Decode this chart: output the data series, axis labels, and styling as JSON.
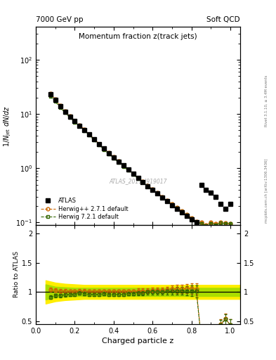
{
  "title": "Momentum fraction z(track jets)",
  "top_left_label": "7000 GeV pp",
  "top_right_label": "Soft QCD",
  "right_label_top": "Rivet 3.1.10, ≥ 3.4M events",
  "right_label_bottom": "mcplots.cern.ch [arXiv:1306.3436]",
  "watermark": "ATLAS_2011_I919017",
  "xlabel": "Charged particle z",
  "ylabel_main": "1/N$_\\mathrm{jet}$ dN/dz",
  "ylabel_ratio": "Ratio to ATLAS",
  "atlas_x": [
    0.075,
    0.1,
    0.125,
    0.15,
    0.175,
    0.2,
    0.225,
    0.25,
    0.275,
    0.3,
    0.325,
    0.35,
    0.375,
    0.4,
    0.425,
    0.45,
    0.475,
    0.5,
    0.525,
    0.55,
    0.575,
    0.6,
    0.625,
    0.65,
    0.675,
    0.7,
    0.725,
    0.75,
    0.775,
    0.8,
    0.825,
    0.85,
    0.875,
    0.9,
    0.925,
    0.95,
    0.975,
    1.0
  ],
  "atlas_y": [
    23.0,
    18.0,
    14.0,
    11.0,
    9.0,
    7.4,
    6.1,
    5.1,
    4.2,
    3.4,
    2.8,
    2.3,
    1.9,
    1.6,
    1.33,
    1.12,
    0.94,
    0.79,
    0.66,
    0.56,
    0.47,
    0.4,
    0.34,
    0.29,
    0.245,
    0.21,
    0.18,
    0.155,
    0.133,
    0.115,
    0.1,
    0.5,
    0.4,
    0.35,
    0.3,
    0.22,
    0.18,
    0.22
  ],
  "atlas_yerr": [
    0.5,
    0.4,
    0.3,
    0.25,
    0.2,
    0.17,
    0.14,
    0.12,
    0.1,
    0.08,
    0.07,
    0.06,
    0.05,
    0.04,
    0.035,
    0.03,
    0.025,
    0.02,
    0.018,
    0.016,
    0.014,
    0.012,
    0.01,
    0.009,
    0.008,
    0.007,
    0.006,
    0.005,
    0.004,
    0.004,
    0.003,
    0.03,
    0.025,
    0.02,
    0.018,
    0.015,
    0.012,
    0.015
  ],
  "herwig271_x": [
    0.075,
    0.1,
    0.125,
    0.15,
    0.175,
    0.2,
    0.225,
    0.25,
    0.275,
    0.3,
    0.325,
    0.35,
    0.375,
    0.4,
    0.425,
    0.45,
    0.475,
    0.5,
    0.525,
    0.55,
    0.575,
    0.6,
    0.625,
    0.65,
    0.675,
    0.7,
    0.725,
    0.75,
    0.775,
    0.8,
    0.825,
    0.85,
    0.875,
    0.9,
    0.925,
    0.95,
    0.975,
    1.0
  ],
  "herwig271_y": [
    24.0,
    18.5,
    14.3,
    11.2,
    9.1,
    7.5,
    6.2,
    5.2,
    4.25,
    3.45,
    2.82,
    2.32,
    1.92,
    1.61,
    1.34,
    1.13,
    0.95,
    0.8,
    0.67,
    0.57,
    0.48,
    0.41,
    0.35,
    0.3,
    0.255,
    0.22,
    0.189,
    0.163,
    0.141,
    0.122,
    0.105,
    0.1,
    0.09,
    0.1,
    0.095,
    0.1,
    0.098,
    0.095
  ],
  "herwig271_yerr": [
    0.5,
    0.4,
    0.3,
    0.25,
    0.2,
    0.17,
    0.14,
    0.12,
    0.1,
    0.08,
    0.07,
    0.06,
    0.05,
    0.04,
    0.035,
    0.03,
    0.025,
    0.02,
    0.018,
    0.016,
    0.014,
    0.012,
    0.01,
    0.009,
    0.008,
    0.007,
    0.006,
    0.005,
    0.004,
    0.004,
    0.003,
    0.003,
    0.003,
    0.003,
    0.003,
    0.003,
    0.003,
    0.003
  ],
  "herwig721_x": [
    0.075,
    0.1,
    0.125,
    0.15,
    0.175,
    0.2,
    0.225,
    0.25,
    0.275,
    0.3,
    0.325,
    0.35,
    0.375,
    0.4,
    0.425,
    0.45,
    0.475,
    0.5,
    0.525,
    0.55,
    0.575,
    0.6,
    0.625,
    0.65,
    0.675,
    0.7,
    0.725,
    0.75,
    0.775,
    0.8,
    0.825,
    0.85,
    0.875,
    0.9,
    0.925,
    0.95,
    0.975,
    1.0
  ],
  "herwig721_y": [
    21.0,
    16.9,
    13.2,
    10.5,
    8.6,
    7.1,
    5.95,
    4.95,
    4.05,
    3.28,
    2.7,
    2.22,
    1.83,
    1.53,
    1.28,
    1.08,
    0.91,
    0.77,
    0.65,
    0.55,
    0.47,
    0.4,
    0.34,
    0.29,
    0.248,
    0.213,
    0.183,
    0.158,
    0.136,
    0.117,
    0.101,
    0.096,
    0.087,
    0.096,
    0.091,
    0.097,
    0.095,
    0.095
  ],
  "herwig721_yerr": [
    0.5,
    0.4,
    0.3,
    0.25,
    0.2,
    0.17,
    0.14,
    0.12,
    0.1,
    0.08,
    0.07,
    0.06,
    0.05,
    0.04,
    0.035,
    0.03,
    0.025,
    0.02,
    0.018,
    0.016,
    0.014,
    0.012,
    0.01,
    0.009,
    0.008,
    0.007,
    0.006,
    0.005,
    0.004,
    0.004,
    0.003,
    0.003,
    0.003,
    0.003,
    0.003,
    0.003,
    0.003,
    0.003
  ],
  "ratio_herwig271": [
    1.04,
    1.03,
    1.02,
    1.02,
    1.01,
    1.01,
    1.02,
    1.02,
    1.01,
    1.01,
    1.01,
    1.01,
    1.01,
    1.01,
    1.01,
    1.01,
    1.01,
    1.01,
    1.02,
    1.02,
    1.02,
    1.03,
    1.03,
    1.03,
    1.04,
    1.05,
    1.05,
    1.05,
    1.06,
    1.06,
    1.05,
    0.2,
    0.22,
    0.29,
    0.32,
    0.45,
    0.54,
    0.43
  ],
  "ratio_herwig721": [
    0.91,
    0.94,
    0.94,
    0.95,
    0.96,
    0.96,
    0.98,
    0.97,
    0.96,
    0.96,
    0.96,
    0.97,
    0.96,
    0.96,
    0.96,
    0.96,
    0.97,
    0.97,
    0.98,
    0.98,
    1.0,
    1.0,
    1.0,
    1.0,
    1.01,
    1.01,
    1.02,
    1.02,
    1.02,
    1.02,
    1.01,
    0.19,
    0.22,
    0.27,
    0.3,
    0.44,
    0.53,
    0.43
  ],
  "ratio_herwig271_err": [
    0.03,
    0.03,
    0.03,
    0.03,
    0.03,
    0.03,
    0.03,
    0.03,
    0.03,
    0.03,
    0.03,
    0.03,
    0.03,
    0.03,
    0.03,
    0.03,
    0.03,
    0.03,
    0.04,
    0.04,
    0.04,
    0.04,
    0.05,
    0.05,
    0.05,
    0.06,
    0.07,
    0.07,
    0.08,
    0.09,
    0.1,
    0.06,
    0.06,
    0.07,
    0.07,
    0.08,
    0.09,
    0.1
  ],
  "ratio_herwig721_err": [
    0.03,
    0.03,
    0.03,
    0.03,
    0.03,
    0.03,
    0.03,
    0.03,
    0.03,
    0.03,
    0.03,
    0.03,
    0.03,
    0.03,
    0.03,
    0.03,
    0.03,
    0.03,
    0.04,
    0.04,
    0.04,
    0.04,
    0.05,
    0.05,
    0.05,
    0.06,
    0.07,
    0.07,
    0.08,
    0.09,
    0.1,
    0.06,
    0.06,
    0.07,
    0.07,
    0.08,
    0.09,
    0.1
  ],
  "band_x": [
    0.05,
    0.075,
    0.1,
    0.15,
    0.2,
    0.25,
    0.3,
    0.35,
    0.4,
    0.45,
    0.5,
    0.55,
    0.6,
    0.65,
    0.7,
    0.75,
    0.8,
    0.85,
    0.9,
    0.95,
    1.0,
    1.05
  ],
  "band_yellow_lo": [
    0.8,
    0.82,
    0.84,
    0.86,
    0.87,
    0.88,
    0.88,
    0.88,
    0.88,
    0.88,
    0.88,
    0.88,
    0.88,
    0.88,
    0.88,
    0.88,
    0.88,
    0.88,
    0.88,
    0.88,
    0.88,
    0.88
  ],
  "band_yellow_hi": [
    1.2,
    1.18,
    1.16,
    1.14,
    1.13,
    1.12,
    1.12,
    1.12,
    1.12,
    1.12,
    1.12,
    1.12,
    1.12,
    1.12,
    1.12,
    1.12,
    1.12,
    1.12,
    1.12,
    1.12,
    1.12,
    1.12
  ],
  "band_green_lo": [
    0.87,
    0.89,
    0.91,
    0.92,
    0.93,
    0.93,
    0.93,
    0.93,
    0.93,
    0.93,
    0.93,
    0.93,
    0.93,
    0.93,
    0.93,
    0.93,
    0.93,
    0.93,
    0.93,
    0.93,
    0.93,
    0.93
  ],
  "band_green_hi": [
    1.13,
    1.11,
    1.09,
    1.08,
    1.07,
    1.07,
    1.07,
    1.07,
    1.07,
    1.07,
    1.07,
    1.07,
    1.07,
    1.07,
    1.07,
    1.07,
    1.07,
    1.07,
    1.07,
    1.07,
    1.07,
    1.07
  ],
  "color_atlas": "#000000",
  "color_herwig271": "#cc6600",
  "color_herwig721": "#336600",
  "color_band_yellow": "#ffee00",
  "color_band_green": "#aadd00",
  "xlim": [
    0.0,
    1.05
  ],
  "ylim_main": [
    0.09,
    400
  ],
  "ylim_ratio": [
    0.45,
    2.15
  ],
  "ratio_yticks": [
    0.5,
    1.0,
    1.5,
    2.0
  ],
  "ratio_yticklabels": [
    "0.5",
    "1",
    "1.5",
    "2"
  ]
}
